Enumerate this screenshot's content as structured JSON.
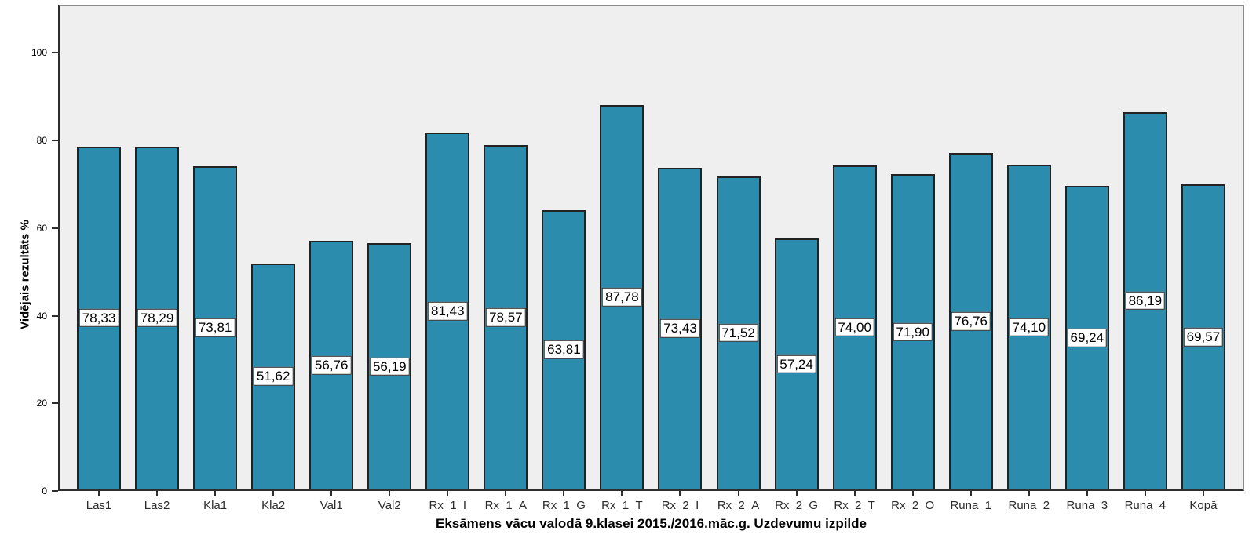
{
  "chart_data": {
    "type": "bar",
    "title": "",
    "xlabel": "Eksāmens vācu valodā 9.klasei 2015./2016.māc.g. Uzdevumu izpilde",
    "ylabel": "Vidējais rezultāts %",
    "categories": [
      "Las1",
      "Las2",
      "Kla1",
      "Kla2",
      "Val1",
      "Val2",
      "Rx_1_I",
      "Rx_1_A",
      "Rx_1_G",
      "Rx_1_T",
      "Rx_2_I",
      "Rx_2_A",
      "Rx_2_G",
      "Rx_2_T",
      "Rx_2_O",
      "Runa_1",
      "Runa_2",
      "Runa_3",
      "Runa_4",
      "Kopā"
    ],
    "values": [
      78.33,
      78.29,
      73.81,
      51.62,
      56.76,
      56.19,
      81.43,
      78.57,
      63.81,
      87.78,
      73.43,
      71.52,
      57.24,
      74.0,
      71.9,
      76.76,
      74.1,
      69.24,
      86.19,
      69.57
    ],
    "value_labels": [
      "78,33",
      "78,29",
      "73,81",
      "51,62",
      "56,76",
      "56,19",
      "81,43",
      "78,57",
      "63,81",
      "87,78",
      "73,43",
      "71,52",
      "57,24",
      "74,00",
      "71,90",
      "76,76",
      "74,10",
      "69,24",
      "86,19",
      "69,57"
    ],
    "y_ticks": [
      0,
      20,
      40,
      60,
      80,
      100
    ],
    "ylim": [
      0,
      111
    ],
    "grid": false,
    "legend": "none",
    "bar_color": "#2b8cae",
    "bar_border_color": "#222222",
    "plot_bg": "#efefef",
    "label_box_bg": "#ffffff",
    "label_box_border": "#262626"
  }
}
